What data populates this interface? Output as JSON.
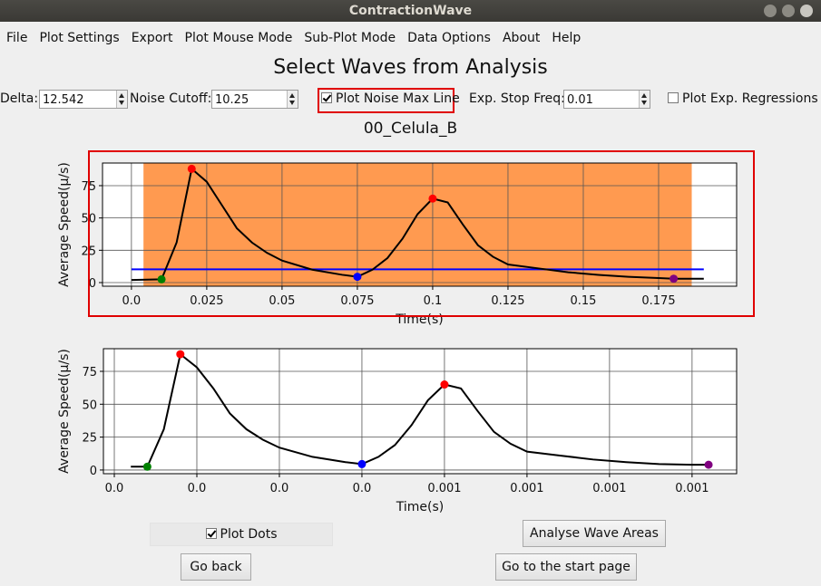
{
  "window": {
    "title": "ContractionWave"
  },
  "menu": [
    "File",
    "Plot Settings",
    "Export",
    "Plot Mouse Mode",
    "Sub-Plot Mode",
    "Data Options",
    "About",
    "Help"
  ],
  "heading": "Select Waves from Analysis",
  "controls": {
    "delta": {
      "label": "Delta:",
      "value": "12.542"
    },
    "noise_cutoff": {
      "label": "Noise Cutoff:",
      "value": "10.25"
    },
    "plot_noise_max_line": {
      "label": "Plot Noise Max Line",
      "checked": true
    },
    "exp_stop_freq": {
      "label": "Exp. Stop Freq:",
      "value": "0.01"
    },
    "plot_exp_regressions": {
      "label": "Plot Exp. Regressions",
      "checked": false
    }
  },
  "subtitle": "00_Celula_B",
  "chart_data": [
    {
      "type": "line",
      "xlabel": "Time(s)",
      "ylabel": "Average Speed(μ/s)",
      "grid": true,
      "x": [
        0,
        0.01,
        0.015,
        0.02,
        0.025,
        0.03,
        0.035,
        0.04,
        0.045,
        0.05,
        0.06,
        0.07,
        0.075,
        0.08,
        0.085,
        0.09,
        0.095,
        0.1,
        0.105,
        0.11,
        0.115,
        0.12,
        0.125,
        0.135,
        0.145,
        0.155,
        0.165,
        0.175,
        0.18,
        0.19
      ],
      "values": [
        2,
        2.5,
        31,
        88,
        78,
        60,
        42,
        31,
        23,
        17,
        10,
        6,
        4.5,
        10,
        19,
        34,
        53,
        65,
        62,
        45,
        29,
        20,
        14,
        11,
        8,
        6,
        4.5,
        3.5,
        3,
        3
      ],
      "color": "#000000",
      "points": {
        "x": [
          0.01,
          0.02,
          0.075,
          0.1,
          0.18
        ],
        "y": [
          2.5,
          88,
          4.5,
          65,
          3
        ],
        "colors": [
          "#008000",
          "#ff0000",
          "#0000ff",
          "#ff0000",
          "#800080"
        ]
      },
      "span": {
        "x": [
          0.004,
          0.186
        ],
        "color": "#ff9a50"
      },
      "hline": {
        "y": 10.25,
        "x": [
          0,
          0.19
        ],
        "color": "#0000ff"
      },
      "xlim": [
        -0.0096,
        0.2009
      ],
      "ylim": [
        -2.8,
        92.5
      ],
      "xticks": [
        {
          "value": 0,
          "label": "0.0"
        },
        0.025,
        0.05,
        0.075,
        0.1,
        0.125,
        0.15,
        0.175
      ],
      "yticks": [
        0,
        25,
        50,
        75
      ]
    },
    {
      "type": "line",
      "xlabel": "Time(s)",
      "ylabel": "Average Speed(μ/s)",
      "grid": true,
      "x": [
        0.00012,
        0.00014,
        0.00016,
        0.00018,
        0.0002,
        0.00022,
        0.00024,
        0.00026,
        0.00028,
        0.0003,
        0.00034,
        0.00038,
        0.0004,
        0.00042,
        0.00044,
        0.00046,
        0.00048,
        0.0005,
        0.00052,
        0.00054,
        0.00056,
        0.00058,
        0.0006,
        0.00064,
        0.00068,
        0.00072,
        0.00076,
        0.0008,
        0.00082
      ],
      "values": [
        2.5,
        2.5,
        31,
        88,
        78,
        62,
        43,
        31,
        23,
        17,
        10,
        6,
        4.5,
        10,
        19,
        34,
        53,
        65,
        62,
        45,
        29,
        20,
        14,
        11,
        8,
        6,
        4.5,
        4,
        4
      ],
      "color": "#000000",
      "points": {
        "x": [
          0.00014,
          0.00018,
          0.0004,
          0.0005,
          0.00082
        ],
        "y": [
          2.5,
          88,
          4.5,
          65,
          4
        ],
        "colors": [
          "#008000",
          "#ff0000",
          "#0000ff",
          "#ff0000",
          "#800080"
        ]
      },
      "xlim": [
        8.68e-05,
        0.000854
      ],
      "ylim": [
        -2.8,
        92.2
      ],
      "xticks": [
        {
          "value": 0.0001,
          "label": "0.0"
        },
        {
          "value": 0.0002,
          "label": "0.0"
        },
        {
          "value": 0.0003,
          "label": "0.0"
        },
        {
          "value": 0.0004,
          "label": "0.0"
        },
        {
          "value": 0.0005,
          "label": "0.001"
        },
        {
          "value": 0.0006,
          "label": "0.001"
        },
        {
          "value": 0.0007,
          "label": "0.001"
        },
        {
          "value": 0.0008,
          "label": "0.001"
        }
      ],
      "yticks": [
        0,
        25,
        50,
        75
      ]
    }
  ],
  "bottom": {
    "plot_dots": {
      "label": "Plot Dots",
      "checked": true
    },
    "buttons": [
      "Analyse Wave Areas",
      "Go back",
      "Go to the start page"
    ]
  }
}
